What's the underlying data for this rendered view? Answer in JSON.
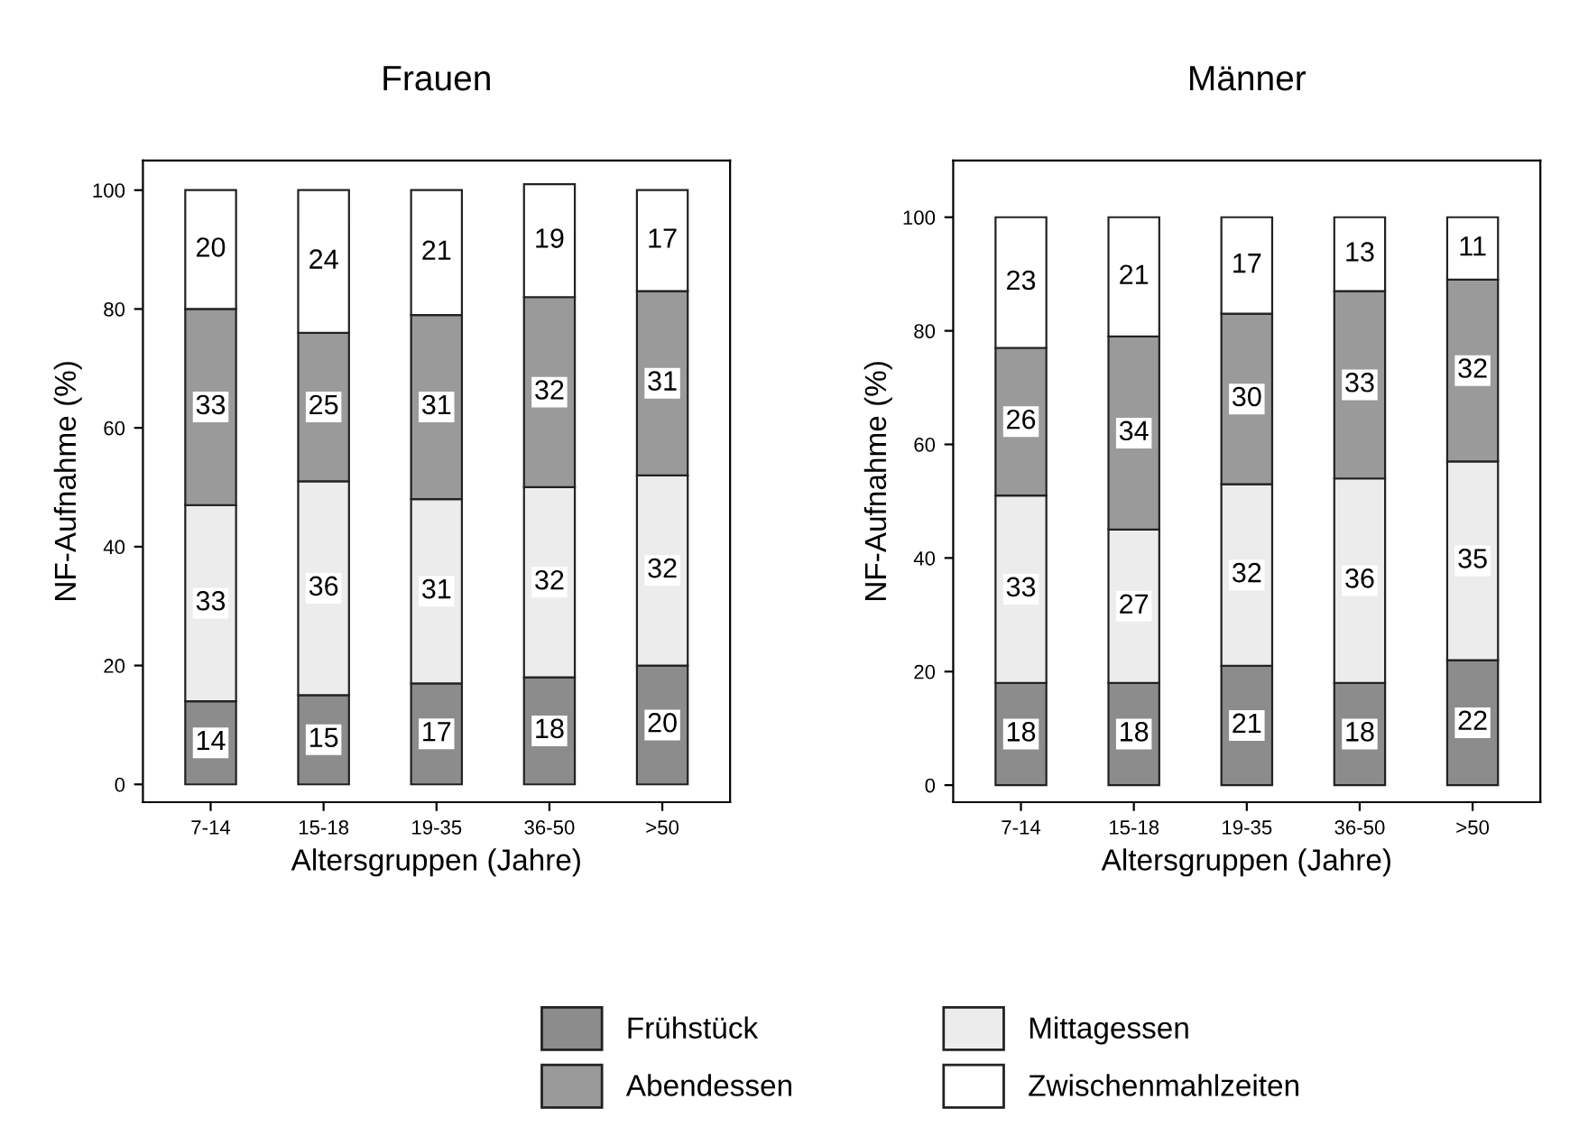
{
  "chart_data": [
    {
      "type": "bar",
      "stacked": true,
      "title": "Frauen",
      "xlabel": "Altersgruppen (Jahre)",
      "ylabel": "NF-Aufnahme (%)",
      "categories": [
        "7-14",
        "15-18",
        "19-35",
        "36-50",
        ">50"
      ],
      "ylim": [
        -3,
        105
      ],
      "yticks": [
        0,
        20,
        40,
        60,
        80,
        100
      ],
      "data_labels": true,
      "grid": false,
      "legend": "bottom",
      "series": [
        {
          "name": "Frühstück",
          "color": "#8c8c8c",
          "values": [
            14,
            15,
            17,
            18,
            20
          ]
        },
        {
          "name": "Mittagessen",
          "color": "#ececec",
          "values": [
            33,
            36,
            31,
            32,
            32
          ]
        },
        {
          "name": "Abendessen",
          "color": "#9a9a9a",
          "values": [
            33,
            25,
            31,
            32,
            31
          ]
        },
        {
          "name": "Zwischenmahlzeiten",
          "color": "#ffffff",
          "values": [
            20,
            24,
            21,
            19,
            17
          ]
        }
      ]
    },
    {
      "type": "bar",
      "stacked": true,
      "title": "Männer",
      "xlabel": "Altersgruppen (Jahre)",
      "ylabel": "NF-Aufnahme (%)",
      "categories": [
        "7-14",
        "15-18",
        "19-35",
        "36-50",
        ">50"
      ],
      "ylim": [
        -3,
        110
      ],
      "yticks": [
        0,
        20,
        40,
        60,
        80,
        100
      ],
      "data_labels": true,
      "grid": false,
      "series": [
        {
          "color": "#8c8c8c",
          "values": [
            18,
            18,
            21,
            18,
            22
          ]
        },
        {
          "color": "#ececec",
          "values": [
            33,
            27,
            32,
            36,
            35
          ]
        },
        {
          "color": "#9a9a9a",
          "values": [
            26,
            34,
            30,
            33,
            32
          ]
        },
        {
          "color": "#ffffff",
          "values": [
            23,
            21,
            17,
            13,
            11
          ]
        }
      ]
    }
  ]
}
